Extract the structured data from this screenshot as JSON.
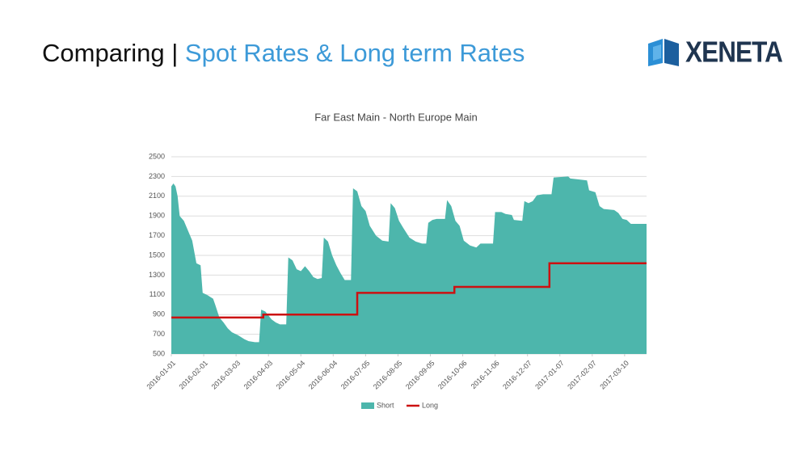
{
  "slide": {
    "title_prefix": "Comparing |",
    "title_highlight": "Spot Rates & Long term Rates",
    "logo": "XENETA"
  },
  "chart_data": {
    "type": "area",
    "title": "Far East Main - North Europe Main",
    "xlim": [
      "2016-01-01",
      "2017-03-31"
    ],
    "xticks": [
      "2016-01-01",
      "2016-02-01",
      "2016-03-03",
      "2016-04-03",
      "2016-05-04",
      "2016-06-04",
      "2016-07-05",
      "2016-08-05",
      "2016-09-05",
      "2016-10-06",
      "2016-11-06",
      "2016-12-07",
      "2017-01-07",
      "2017-02-07",
      "2017-03-10"
    ],
    "ylim": [
      500,
      2500
    ],
    "yticks": [
      500,
      700,
      900,
      1100,
      1300,
      1500,
      1700,
      1900,
      2100,
      2300,
      2500
    ],
    "grid": true,
    "legend": "bottom",
    "series": [
      {
        "name": "Short",
        "color": "#4db6ac",
        "style": "area",
        "x": [
          "2016-01-01",
          "2016-01-03",
          "2016-01-05",
          "2016-01-07",
          "2016-01-09",
          "2016-01-13",
          "2016-01-17",
          "2016-01-21",
          "2016-01-25",
          "2016-01-29",
          "2016-01-31",
          "2016-02-04",
          "2016-02-10",
          "2016-02-12",
          "2016-02-16",
          "2016-02-20",
          "2016-02-24",
          "2016-02-28",
          "2016-03-05",
          "2016-03-11",
          "2016-03-15",
          "2016-03-21",
          "2016-03-25",
          "2016-03-27",
          "2016-03-31",
          "2016-04-06",
          "2016-04-10",
          "2016-04-14",
          "2016-04-20",
          "2016-04-22",
          "2016-04-26",
          "2016-04-30",
          "2016-05-04",
          "2016-05-08",
          "2016-05-12",
          "2016-05-16",
          "2016-05-20",
          "2016-05-24",
          "2016-05-26",
          "2016-05-30",
          "2016-06-03",
          "2016-06-07",
          "2016-06-11",
          "2016-06-15",
          "2016-06-21",
          "2016-06-23",
          "2016-06-27",
          "2016-07-01",
          "2016-07-05",
          "2016-07-09",
          "2016-07-15",
          "2016-07-21",
          "2016-07-27",
          "2016-07-29",
          "2016-08-02",
          "2016-08-06",
          "2016-08-10",
          "2016-08-16",
          "2016-08-22",
          "2016-08-28",
          "2016-09-01",
          "2016-09-03",
          "2016-09-07",
          "2016-09-11",
          "2016-09-19",
          "2016-09-21",
          "2016-09-25",
          "2016-09-29",
          "2016-10-03",
          "2016-10-07",
          "2016-10-13",
          "2016-10-19",
          "2016-10-23",
          "2016-11-04",
          "2016-11-06",
          "2016-11-12",
          "2016-11-16",
          "2016-11-22",
          "2016-11-24",
          "2016-12-02",
          "2016-12-04",
          "2016-12-08",
          "2016-12-12",
          "2016-12-16",
          "2016-12-22",
          "2016-12-30",
          "2017-01-01",
          "2017-01-15",
          "2017-01-17",
          "2017-01-25",
          "2017-02-02",
          "2017-02-04",
          "2017-02-10",
          "2017-02-14",
          "2017-02-18",
          "2017-02-28",
          "2017-03-04",
          "2017-03-08",
          "2017-03-12",
          "2017-03-16",
          "2017-03-31"
        ],
        "values": [
          2200,
          2230,
          2200,
          2100,
          1900,
          1850,
          1750,
          1650,
          1420,
          1400,
          1120,
          1100,
          1060,
          1000,
          870,
          820,
          760,
          720,
          690,
          650,
          630,
          620,
          620,
          950,
          930,
          850,
          820,
          800,
          800,
          1480,
          1450,
          1360,
          1340,
          1390,
          1340,
          1280,
          1260,
          1270,
          1680,
          1640,
          1500,
          1400,
          1320,
          1250,
          1250,
          2180,
          2150,
          2000,
          1950,
          1800,
          1700,
          1650,
          1640,
          2030,
          1980,
          1850,
          1780,
          1680,
          1640,
          1620,
          1620,
          1830,
          1860,
          1870,
          1870,
          2060,
          2000,
          1850,
          1800,
          1650,
          1600,
          1580,
          1620,
          1620,
          1940,
          1940,
          1920,
          1910,
          1860,
          1850,
          2050,
          2030,
          2050,
          2110,
          2120,
          2120,
          2290,
          2300,
          2280,
          2270,
          2260,
          2160,
          2140,
          2000,
          1970,
          1960,
          1930,
          1870,
          1860,
          1820,
          1820
        ]
      },
      {
        "name": "Long",
        "color": "#cc1111",
        "style": "line",
        "x": [
          "2016-01-01",
          "2016-03-29",
          "2016-03-29",
          "2016-06-27",
          "2016-06-27",
          "2016-09-28",
          "2016-09-28",
          "2016-12-28",
          "2016-12-28",
          "2017-03-31"
        ],
        "values": [
          870,
          870,
          900,
          900,
          1120,
          1120,
          1180,
          1180,
          1420,
          1420
        ]
      }
    ]
  }
}
